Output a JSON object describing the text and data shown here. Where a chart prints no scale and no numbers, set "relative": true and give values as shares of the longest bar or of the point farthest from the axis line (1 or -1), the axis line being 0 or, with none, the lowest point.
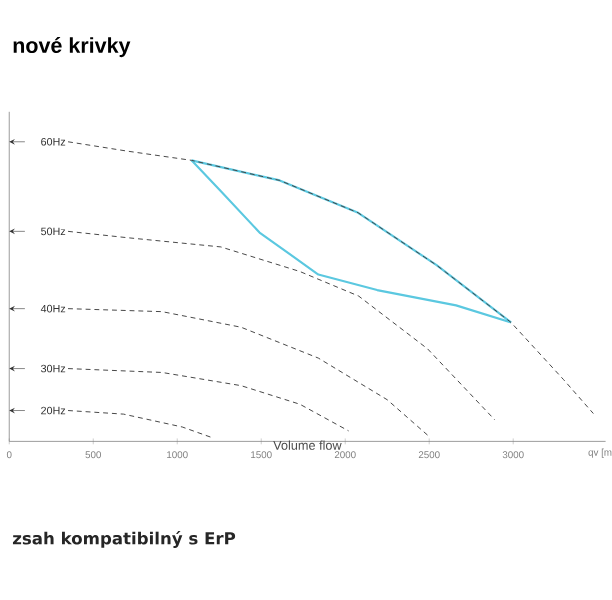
{
  "chart_data": {
    "type": "line",
    "title": "nové krivky",
    "xlabel": "Volume flow",
    "relative": true,
    "xlim": [
      0,
      3550
    ],
    "xticks": [
      0,
      500,
      1000,
      1500,
      2000,
      2500,
      3000
    ],
    "annotations": [
      "qv [m",
      "zsah kompatibilný s ErP"
    ],
    "legend": false,
    "grid": false,
    "marker": "none",
    "series": [
      {
        "color": "#5bc8e0",
        "line_style": "solid",
        "x": [
          1085,
          1260,
          1490,
          1840,
          2190,
          2660,
          2987
        ],
        "values": [
          0.938,
          0.835,
          0.697,
          0.557,
          0.505,
          0.454,
          0.397
        ]
      },
      {
        "color": "#5bc8e0",
        "line_style": "solid",
        "x": [
          1085,
          1610,
          2077,
          2544,
          2987
        ],
        "values": [
          0.938,
          0.871,
          0.763,
          0.588,
          0.397
        ]
      },
      {
        "name": "60Hz",
        "color": "#444444",
        "line_style": "dashed",
        "x": [
          350,
          700,
          1085,
          1610,
          2077,
          2544,
          2987,
          3300,
          3477
        ],
        "values": [
          1,
          0.969,
          0.938,
          0.871,
          0.763,
          0.588,
          0.397,
          0.206,
          0.093
        ]
      },
      {
        "name": "50Hz",
        "color": "#444444",
        "line_style": "dashed",
        "x": [
          350,
          700,
          1260,
          1730,
          2080,
          2490,
          2890
        ],
        "values": [
          0.701,
          0.68,
          0.649,
          0.567,
          0.485,
          0.309,
          0.072
        ]
      },
      {
        "name": "40Hz",
        "color": "#444444",
        "line_style": "dashed",
        "x": [
          350,
          910,
          1380,
          1840,
          2250,
          2490
        ],
        "values": [
          0.443,
          0.433,
          0.381,
          0.278,
          0.139,
          0.021
        ]
      },
      {
        "name": "30Hz",
        "color": "#444444",
        "line_style": "dashed",
        "x": [
          350,
          910,
          1380,
          1730,
          2020
        ],
        "values": [
          0.243,
          0.23,
          0.186,
          0.124,
          0.035
        ]
      },
      {
        "name": "20Hz",
        "color": "#444444",
        "line_style": "dashed",
        "x": [
          350,
          680,
          1030,
          1200
        ],
        "values": [
          0.103,
          0.091,
          0.048,
          0.014
        ]
      }
    ]
  }
}
